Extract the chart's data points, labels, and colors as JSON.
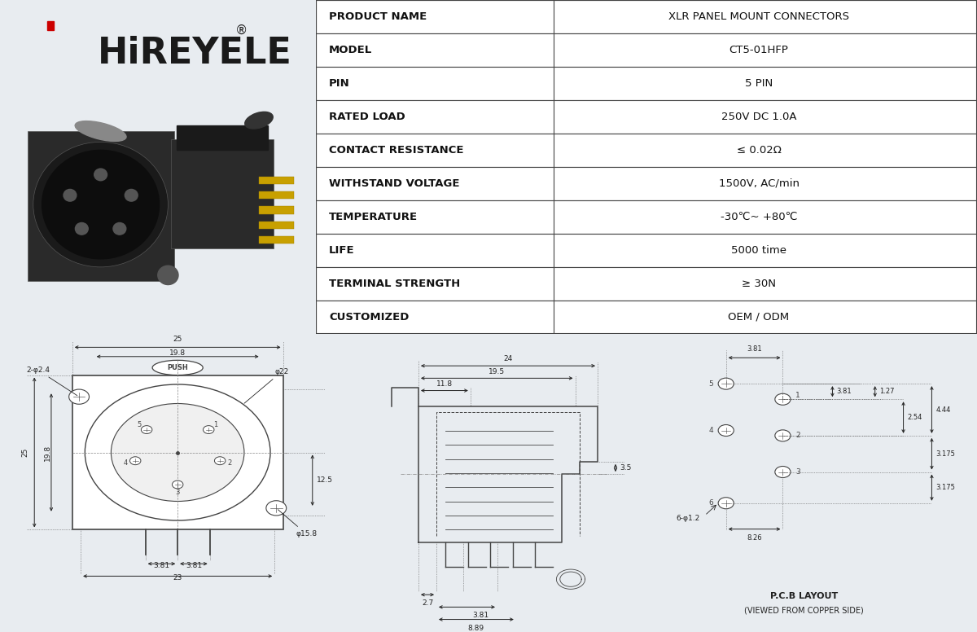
{
  "bg_color": "#e8ecf0",
  "bg_bottom": "#dce8f4",
  "table_bg": "#ffffff",
  "border_color": "#444444",
  "blue_stripe": "#4aabdb",
  "logo_color": "#1a1a1a",
  "logo_red": "#cc0000",
  "draw_color": "#444444",
  "dim_color": "#222222",
  "table_rows": [
    [
      "PRODUCT NAME",
      "XLR PANEL MOUNT CONNECTORS"
    ],
    [
      "MODEL",
      "CT5-01HFP"
    ],
    [
      "PIN",
      "5 PIN"
    ],
    [
      "RATED LOAD",
      "250V DC 1.0A"
    ],
    [
      "CONTACT RESISTANCE",
      "≤ 0.02Ω"
    ],
    [
      "WITHSTAND VOLTAGE",
      "1500V, AC/min"
    ],
    [
      "TEMPERATURE",
      "-30℃~ +80℃"
    ],
    [
      "LIFE",
      "5000 time"
    ],
    [
      "TERMINAL STRENGTH",
      "≥ 30N"
    ],
    [
      "CUSTOMIZED",
      "OEM / ODM"
    ]
  ],
  "pcb_label": "P.C.B LAYOUT",
  "pcb_sublabel": "(VIEWED FROM COPPER SIDE)"
}
